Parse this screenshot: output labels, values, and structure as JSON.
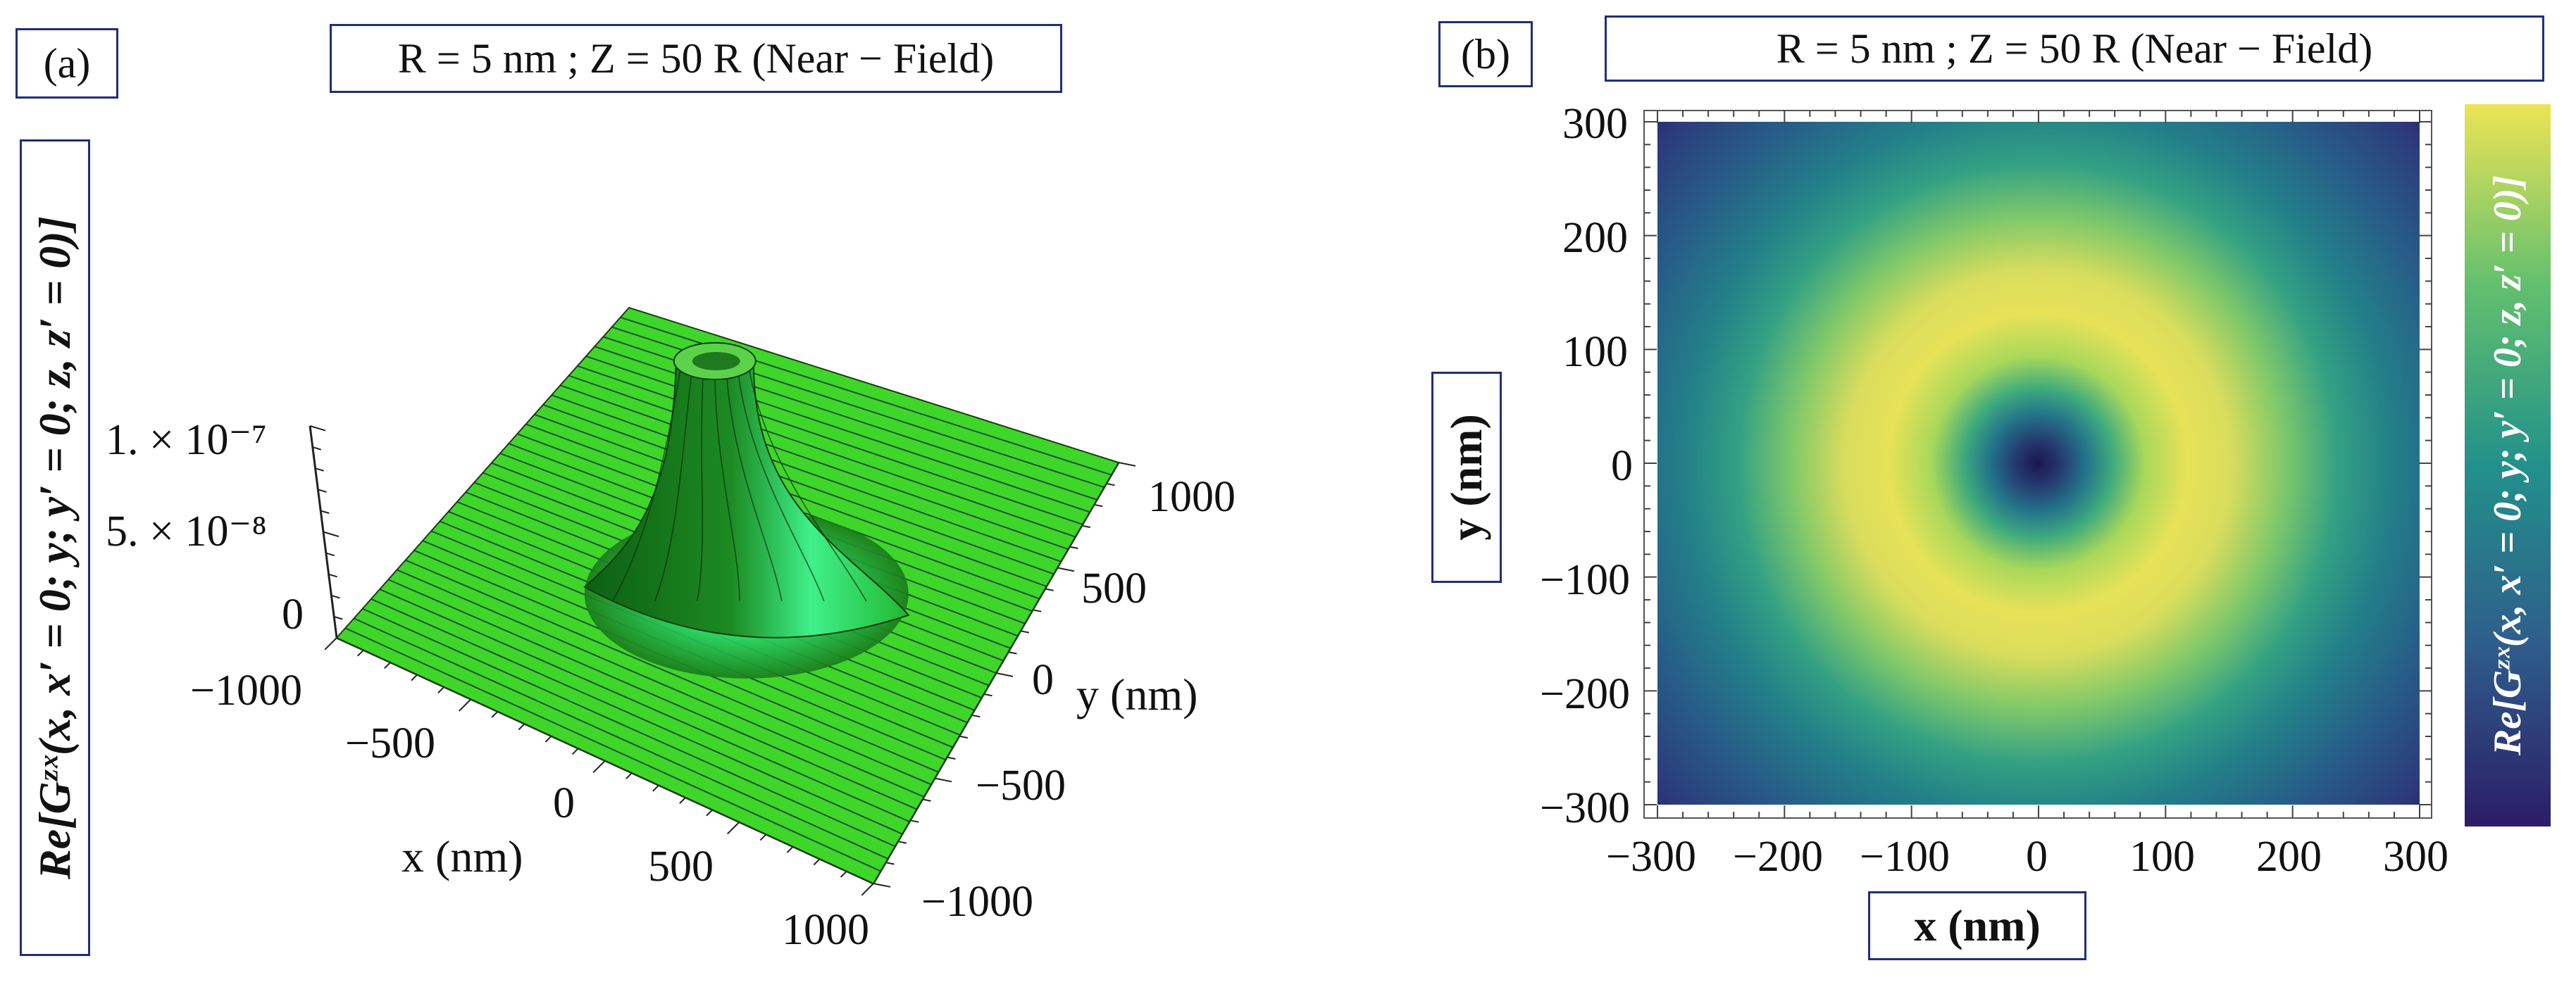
{
  "panel_a": {
    "label": "(a)",
    "title": "R = 5 nm ; Z = 50 R (Near − Field)",
    "zlabel": "Re[Gᶻˣ(x, x′ = 0; y; y′ = 0; z, z′ = 0)]",
    "z_ticks": [
      "1. × 10⁻⁷",
      "5. × 10⁻⁸",
      "0"
    ],
    "x_ticks": [
      "−1000",
      "−500",
      "0",
      "500",
      "1000"
    ],
    "y_ticks": [
      "1000",
      "500",
      "0",
      "−500",
      "−1000"
    ],
    "xlabel": "x (nm)",
    "ylabel": "y (nm)"
  },
  "panel_b": {
    "label": "(b)",
    "title": "R = 5 nm ; Z = 50 R (Near − Field)",
    "xlabel": "x (nm)",
    "ylabel": "y (nm)",
    "colorbar_label": "Re[Gᶻˣ(x, x′ = 0; y; y′ = 0; z, z′ = 0)]",
    "x_ticks": [
      "−300",
      "−200",
      "−100",
      "0",
      "100",
      "200",
      "300"
    ],
    "y_ticks": [
      "300",
      "200",
      "100",
      "0",
      "−100",
      "−200",
      "−300"
    ]
  },
  "colors": {
    "surface": "#3fd62a",
    "viridis_dark": "#2c1f6e",
    "viridis_mid": "#2a8a8c",
    "viridis_bright": "#e6e055",
    "frame": "#1f2f7a"
  },
  "chart_data": [
    {
      "type": "surface3d",
      "title": "R = 5 nm ; Z = 50 R (Near − Field)",
      "xlabel": "x (nm)",
      "ylabel": "y (nm)",
      "zlabel": "Re[Gᶻˣ(x, x′ = 0; y; y′ = 0; z, z′ = 0)]",
      "xlim": [
        -1000,
        1000
      ],
      "ylim": [
        -1000,
        1000
      ],
      "zlim": [
        0,
        1e-07
      ],
      "peak_z": 1e-07,
      "description": "Sharp peak centered at x = 0, y = 0 with a small dip at the apex, decaying to 0"
    },
    {
      "type": "heatmap",
      "title": "R = 5 nm ; Z = 50 R (Near − Field)",
      "xlabel": "x (nm)",
      "ylabel": "y (nm)",
      "xlim": [
        -300,
        300
      ],
      "ylim": [
        -300,
        300
      ],
      "center": [
        0,
        0
      ],
      "ring_radius_nm": 150,
      "colormap": "viridis",
      "description": "Minimum at origin, bright ring of maxima at radius ~150 nm, decaying outward"
    }
  ]
}
